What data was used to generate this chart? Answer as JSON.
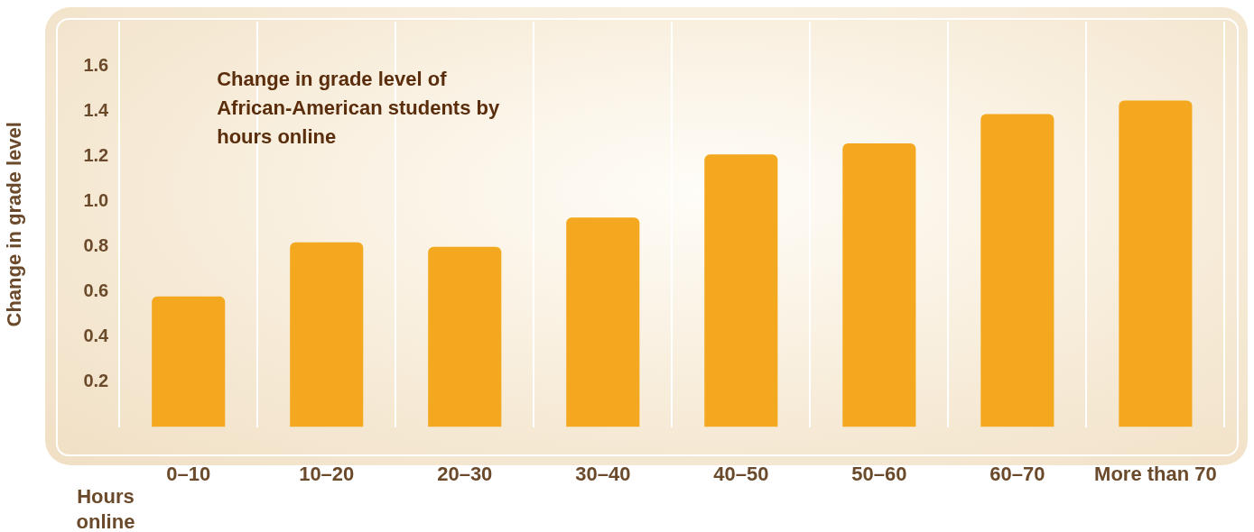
{
  "chart_data": {
    "type": "bar",
    "title": "Change in grade level of African-American students by hours online",
    "xlabel": "Hours online",
    "ylabel": "Change in grade level",
    "categories": [
      "0–10",
      "10–20",
      "20–30",
      "30–40",
      "40–50",
      "50–60",
      "60–70",
      "More than 70"
    ],
    "values": [
      0.58,
      0.82,
      0.8,
      0.93,
      1.21,
      1.26,
      1.39,
      1.45
    ],
    "color": "#f4a81f",
    "ylim": [
      0,
      1.8
    ],
    "yticks": [
      0.2,
      0.4,
      0.6,
      0.8,
      {
        "value": 1,
        "label": "1.0"
      },
      1.2,
      1.4,
      1.6
    ],
    "grid": "x",
    "legend": false
  }
}
